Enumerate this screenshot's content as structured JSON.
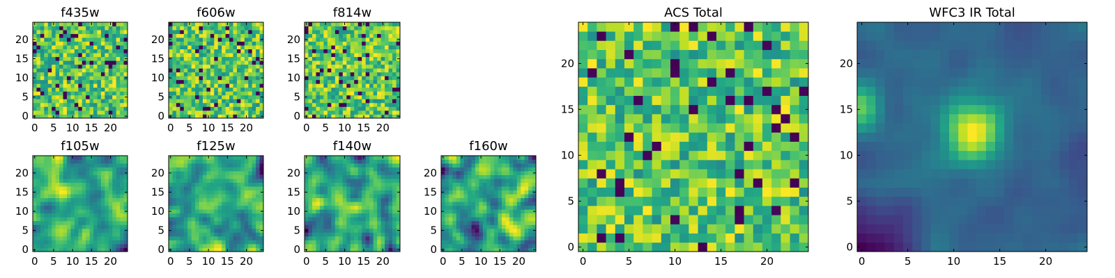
{
  "chart_data": [
    {
      "type": "heatmap",
      "title": "f435w",
      "xlim": [
        -0.5,
        24.5
      ],
      "ylim": [
        -0.5,
        24.5
      ],
      "xticks": [
        "0",
        "5",
        "10",
        "15",
        "20"
      ],
      "yticks": [
        "0",
        "5",
        "10",
        "15",
        "20"
      ],
      "grid_size": 25,
      "colormap": "viridis",
      "texture": "noise",
      "seed": 11
    },
    {
      "type": "heatmap",
      "title": "f606w",
      "xlim": [
        -0.5,
        24.5
      ],
      "ylim": [
        -0.5,
        24.5
      ],
      "xticks": [
        "0",
        "5",
        "10",
        "15",
        "20"
      ],
      "yticks": [
        "0",
        "5",
        "10",
        "15",
        "20"
      ],
      "grid_size": 25,
      "colormap": "viridis",
      "texture": "noise",
      "seed": 23
    },
    {
      "type": "heatmap",
      "title": "f814w",
      "xlim": [
        -0.5,
        24.5
      ],
      "ylim": [
        -0.5,
        24.5
      ],
      "xticks": [
        "0",
        "5",
        "10",
        "15",
        "20"
      ],
      "yticks": [
        "0",
        "5",
        "10",
        "15",
        "20"
      ],
      "grid_size": 25,
      "colormap": "viridis",
      "texture": "noise",
      "seed": 37
    },
    {
      "type": "heatmap",
      "title": "f105w",
      "xlim": [
        -0.5,
        24.5
      ],
      "ylim": [
        -0.5,
        24.5
      ],
      "xticks": [
        "0",
        "5",
        "10",
        "15",
        "20"
      ],
      "yticks": [
        "0",
        "5",
        "10",
        "15",
        "20"
      ],
      "grid_size": 25,
      "colormap": "viridis",
      "texture": "smooth",
      "seed": 41
    },
    {
      "type": "heatmap",
      "title": "f125w",
      "xlim": [
        -0.5,
        24.5
      ],
      "ylim": [
        -0.5,
        24.5
      ],
      "xticks": [
        "0",
        "5",
        "10",
        "15",
        "20"
      ],
      "yticks": [
        "0",
        "5",
        "10",
        "15",
        "20"
      ],
      "grid_size": 25,
      "colormap": "viridis",
      "texture": "smooth",
      "seed": 53
    },
    {
      "type": "heatmap",
      "title": "f140w",
      "xlim": [
        -0.5,
        24.5
      ],
      "ylim": [
        -0.5,
        24.5
      ],
      "xticks": [
        "0",
        "5",
        "10",
        "15",
        "20"
      ],
      "yticks": [
        "0",
        "5",
        "10",
        "15",
        "20"
      ],
      "grid_size": 25,
      "colormap": "viridis",
      "texture": "smooth",
      "seed": 67
    },
    {
      "type": "heatmap",
      "title": "f160w",
      "xlim": [
        -0.5,
        24.5
      ],
      "ylim": [
        -0.5,
        24.5
      ],
      "xticks": [
        "0",
        "5",
        "10",
        "15",
        "20"
      ],
      "yticks": [
        "0",
        "5",
        "10",
        "15",
        "20"
      ],
      "grid_size": 25,
      "colormap": "viridis",
      "texture": "smooth",
      "seed": 79
    },
    {
      "type": "heatmap",
      "title": "ACS Total",
      "xlim": [
        -0.5,
        24.5
      ],
      "ylim": [
        -0.5,
        24.5
      ],
      "xticks": [
        "0",
        "5",
        "10",
        "15",
        "20"
      ],
      "yticks": [
        "0",
        "5",
        "10",
        "15",
        "20"
      ],
      "grid_size": 25,
      "colormap": "viridis",
      "texture": "noise",
      "seed": 97
    },
    {
      "type": "heatmap",
      "title": "WFC3 IR Total",
      "xlim": [
        -0.5,
        24.5
      ],
      "ylim": [
        -0.5,
        24.5
      ],
      "xticks": [
        "0",
        "5",
        "10",
        "15",
        "20"
      ],
      "yticks": [
        "0",
        "5",
        "10",
        "15",
        "20"
      ],
      "grid_size": 25,
      "colormap": "viridis",
      "texture": "source",
      "seed": 113
    }
  ]
}
